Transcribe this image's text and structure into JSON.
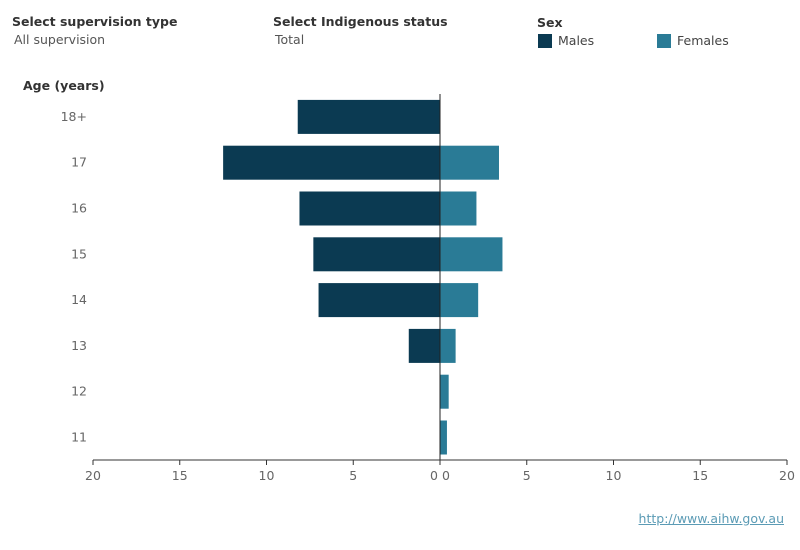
{
  "controls": {
    "supervision": {
      "label": "Select supervision type",
      "value": "All supervision"
    },
    "indigenous": {
      "label": "Select Indigenous status",
      "value": "Total"
    },
    "sex": {
      "label": "Sex",
      "items": [
        {
          "label": "Males",
          "color": "#0b3a52"
        },
        {
          "label": "Females",
          "color": "#2a7b96"
        }
      ]
    }
  },
  "footer": {
    "link": "http://www.aihw.gov.au"
  },
  "chart_data": {
    "type": "bar",
    "orientation": "horizontal",
    "layout": "population-pyramid",
    "y_title": "Age (years)",
    "categories": [
      "18+",
      "17",
      "16",
      "15",
      "14",
      "13",
      "12",
      "11"
    ],
    "series": [
      {
        "name": "Males",
        "side": "left",
        "color": "#0b3a52",
        "values": [
          8.2,
          12.5,
          8.1,
          7.3,
          7.0,
          1.8,
          0,
          0
        ]
      },
      {
        "name": "Females",
        "side": "right",
        "color": "#2a7b96",
        "values": [
          0,
          3.4,
          2.1,
          3.6,
          2.2,
          0.9,
          0.5,
          0.4
        ]
      }
    ],
    "x_ticks_left": [
      "20",
      "15",
      "10",
      "5",
      "0"
    ],
    "x_ticks_right": [
      "0",
      "5",
      "10",
      "15",
      "20"
    ],
    "xlim": [
      0,
      20
    ],
    "grid": false
  }
}
